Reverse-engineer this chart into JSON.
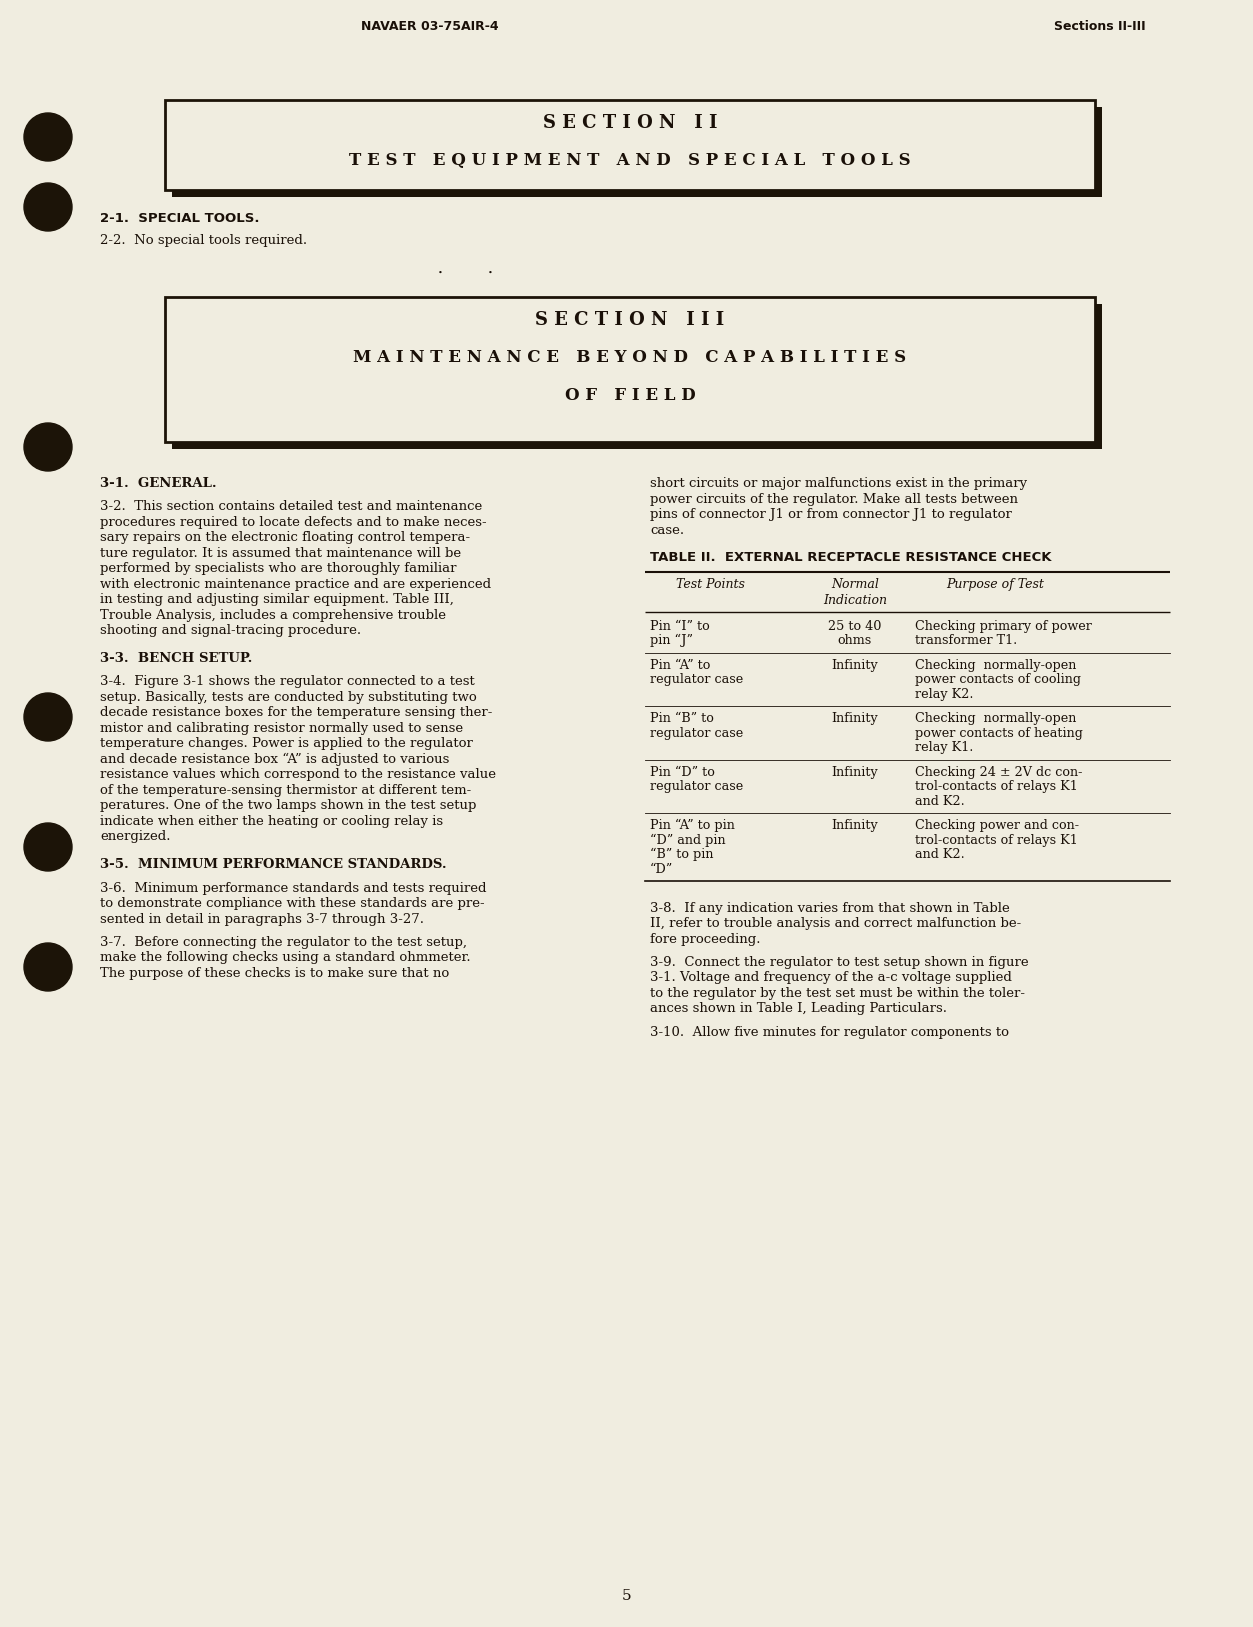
{
  "bg_color": "#f0ede0",
  "text_color": "#1a1008",
  "header_left": "NAVAER 03-75AIR-4",
  "header_right": "Sections II-III",
  "page_number": "5",
  "section2_line1": "S E C T I O N   I I",
  "section2_line2": "T E S T   E Q U I P M E N T   A N D   S P E C I A L   T O O L S",
  "section3_line1": "S E C T I O N   I I I",
  "section3_line2": "M A I N T E N A N C E   B E Y O N D   C A P A B I L I T I E S",
  "section3_line3": "O F   F I E L D",
  "para_21_head": "2-1.  SPECIAL TOOLS.",
  "para_22": "2-2.  No special tools required.",
  "para_31_head": "3-1.  GENERAL.",
  "para_32_lines": [
    "3-2.  This section contains detailed test and maintenance",
    "procedures required to locate defects and to make neces-",
    "sary repairs on the electronic floating control tempera-",
    "ture regulator. It is assumed that maintenance will be",
    "performed by specialists who are thoroughly familiar",
    "with electronic maintenance practice and are experienced",
    "in testing and adjusting similar equipment. Table III,",
    "Trouble Analysis, includes a comprehensive trouble",
    "shooting and signal-tracing procedure."
  ],
  "para_33_head": "3-3.  BENCH SETUP.",
  "para_34_lines": [
    "3-4.  Figure 3-1 shows the regulator connected to a test",
    "setup. Basically, tests are conducted by substituting two",
    "decade resistance boxes for the temperature sensing ther-",
    "mistor and calibrating resistor normally used to sense",
    "temperature changes. Power is applied to the regulator",
    "and decade resistance box “A” is adjusted to various",
    "resistance values which correspond to the resistance value",
    "of the temperature-sensing thermistor at different tem-",
    "peratures. One of the two lamps shown in the test setup",
    "indicate when either the heating or cooling relay is",
    "energized."
  ],
  "para_35_head": "3-5.  MINIMUM PERFORMANCE STANDARDS.",
  "para_36_lines": [
    "3-6.  Minimum performance standards and tests required",
    "to demonstrate compliance with these standards are pre-",
    "sented in detail in paragraphs 3-7 through 3-27."
  ],
  "para_37_lines": [
    "3-7.  Before connecting the regulator to the test setup,",
    "make the following checks using a standard ohmmeter.",
    "The purpose of these checks is to make sure that no"
  ],
  "right_top_lines": [
    "short circuits or major malfunctions exist in the primary",
    "power circuits of the regulator. Make all tests between",
    "pins of connector J1 or from connector J1 to regulator",
    "case."
  ],
  "table_title": "TABLE II.  EXTERNAL RECEPTACLE RESISTANCE CHECK",
  "table_col1_hdr": "Test Points",
  "table_col2_hdr1": "Normal",
  "table_col2_hdr2": "Indication",
  "table_col3_hdr": "Purpose of Test",
  "table_rows": [
    {
      "col1": [
        "Pin “I” to",
        "pin “J”"
      ],
      "col2": [
        "25 to 40",
        "ohms"
      ],
      "col3": [
        "Checking primary of power",
        "transformer T1."
      ]
    },
    {
      "col1": [
        "Pin “A” to",
        "regulator case"
      ],
      "col2": [
        "Infinity"
      ],
      "col3": [
        "Checking  normally-open",
        "power contacts of cooling",
        "relay K2."
      ]
    },
    {
      "col1": [
        "Pin “B” to",
        "regulator case"
      ],
      "col2": [
        "Infinity"
      ],
      "col3": [
        "Checking  normally-open",
        "power contacts of heating",
        "relay K1."
      ]
    },
    {
      "col1": [
        "Pin “D” to",
        "regulator case"
      ],
      "col2": [
        "Infinity"
      ],
      "col3": [
        "Checking 24 ± 2V dc con-",
        "trol-contacts of relays K1",
        "and K2."
      ]
    },
    {
      "col1": [
        "Pin “A” to pin",
        "“D” and pin",
        "“B” to pin",
        "“D”"
      ],
      "col2": [
        "Infinity"
      ],
      "col3": [
        "Checking power and con-",
        "trol-contacts of relays K1",
        "and K2."
      ]
    }
  ],
  "para_38_lines": [
    "3-8.  If any indication varies from that shown in Table",
    "II, refer to trouble analysis and correct malfunction be-",
    "fore proceeding."
  ],
  "para_39_lines": [
    "3-9.  Connect the regulator to test setup shown in figure",
    "3-1. Voltage and frequency of the a-c voltage supplied",
    "to the regulator by the test set must be within the toler-",
    "ances shown in Table I, Leading Particulars."
  ],
  "para_310_lines": [
    "3-10.  Allow five minutes for regulator components to"
  ]
}
